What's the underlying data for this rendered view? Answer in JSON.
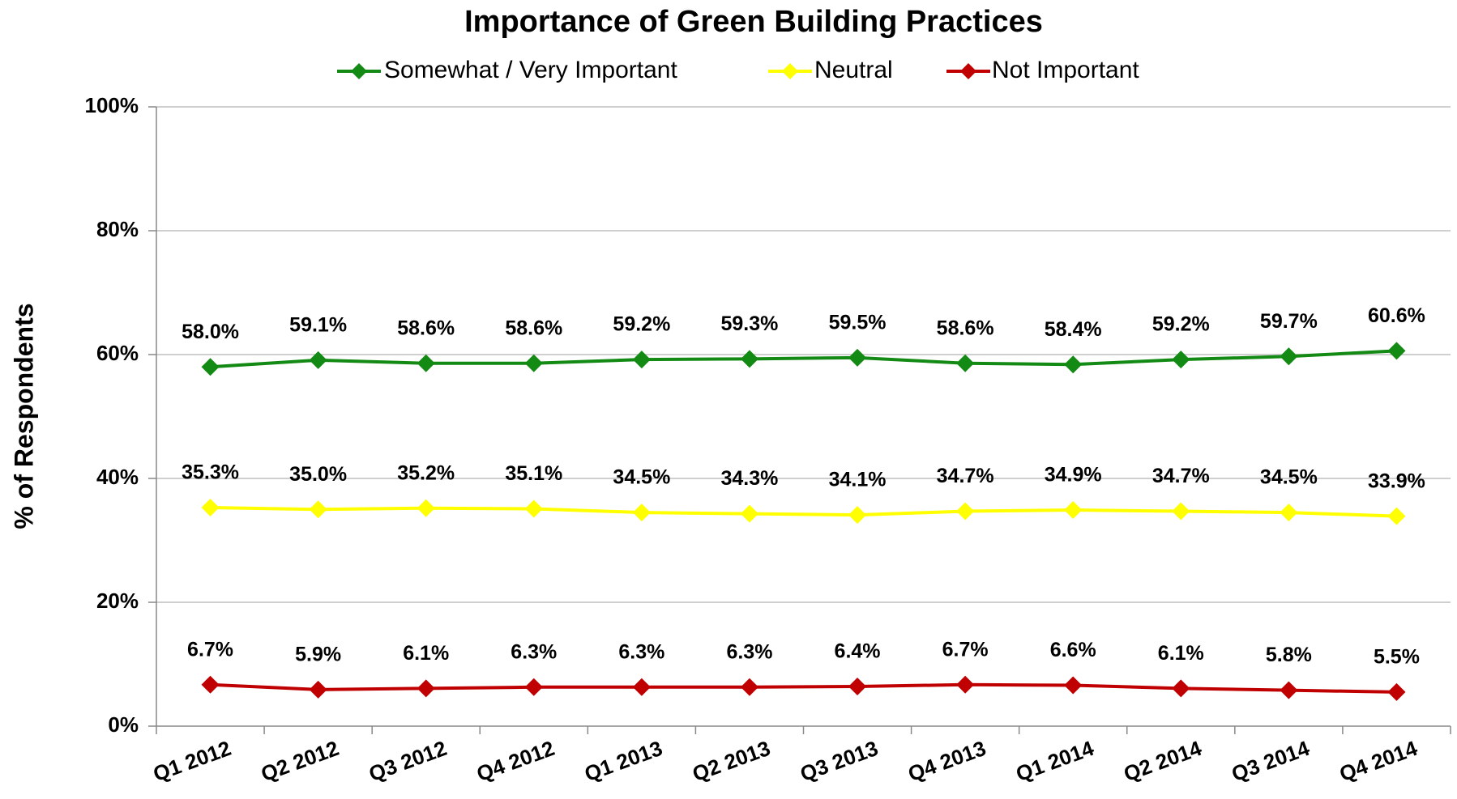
{
  "chart_data": {
    "type": "line",
    "title": "Importance of Green Building Practices",
    "y_label": "% of Respondents",
    "categories": [
      "Q1 2012",
      "Q2 2012",
      "Q3 2012",
      "Q4 2012",
      "Q1 2013",
      "Q2 2013",
      "Q3 2013",
      "Q4 2013",
      "Q1 2014",
      "Q2 2014",
      "Q3 2014",
      "Q4 2014"
    ],
    "series": [
      {
        "name": "Somewhat / Very Important",
        "color": "#138a13",
        "values": [
          58.0,
          59.1,
          58.6,
          58.6,
          59.2,
          59.3,
          59.5,
          58.6,
          58.4,
          59.2,
          59.7,
          60.6
        ],
        "value_labels": [
          "58.0%",
          "59.1%",
          "58.6%",
          "58.6%",
          "59.2%",
          "59.3%",
          "59.5%",
          "58.6%",
          "58.4%",
          "59.2%",
          "59.7%",
          "60.6%"
        ]
      },
      {
        "name": "Neutral",
        "color": "#ffff00",
        "values": [
          35.3,
          35.0,
          35.2,
          35.1,
          34.5,
          34.3,
          34.1,
          34.7,
          34.9,
          34.7,
          34.5,
          33.9
        ],
        "value_labels": [
          "35.3%",
          "35.0%",
          "35.2%",
          "35.1%",
          "34.5%",
          "34.3%",
          "34.1%",
          "34.7%",
          "34.9%",
          "34.7%",
          "34.5%",
          "33.9%"
        ]
      },
      {
        "name": "Not Important",
        "color": "#c00000",
        "values": [
          6.7,
          5.9,
          6.1,
          6.3,
          6.3,
          6.3,
          6.4,
          6.7,
          6.6,
          6.1,
          5.8,
          5.5
        ],
        "value_labels": [
          "6.7%",
          "5.9%",
          "6.1%",
          "6.3%",
          "6.3%",
          "6.3%",
          "6.4%",
          "6.7%",
          "6.6%",
          "6.1%",
          "5.8%",
          "5.5%"
        ]
      }
    ],
    "ylim": [
      0,
      100
    ],
    "yticks": [
      {
        "value": 0,
        "label": "0%"
      },
      {
        "value": 20,
        "label": "20%"
      },
      {
        "value": 40,
        "label": "40%"
      },
      {
        "value": 60,
        "label": "60%"
      },
      {
        "value": 80,
        "label": "80%"
      },
      {
        "value": 100,
        "label": "100%"
      }
    ],
    "grid": true,
    "legend": "top"
  }
}
